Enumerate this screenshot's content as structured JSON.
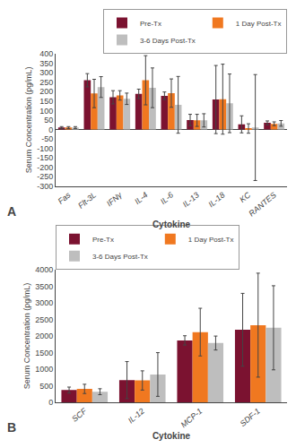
{
  "chart_data": [
    {
      "type": "bar",
      "categories": [
        "Fas",
        "Flt-3L",
        "IFNγ",
        "IL-4",
        "IL-6",
        "IL-13",
        "IL-18",
        "KC",
        "RANTES"
      ],
      "series": [
        {
          "name": "Pre-Tx",
          "color": "#7B1230",
          "values": [
            10,
            260,
            170,
            188,
            178,
            50,
            158,
            27,
            35
          ],
          "errors": [
            5,
            35,
            35,
            25,
            20,
            30,
            180,
            45,
            10
          ]
        },
        {
          "name": "1 Day Post-Tx",
          "color": "#F07820",
          "values": [
            10,
            190,
            180,
            260,
            192,
            48,
            160,
            5,
            30
          ],
          "errors": [
            5,
            75,
            25,
            130,
            75,
            32,
            185,
            25,
            10
          ]
        },
        {
          "name": "3-6 Days Post-Tx",
          "color": "#BEBEBE",
          "values": [
            10,
            224,
            162,
            220,
            130,
            48,
            138,
            10,
            32
          ],
          "errors": [
            5,
            55,
            30,
            105,
            150,
            35,
            155,
            280,
            15
          ]
        }
      ],
      "xlabel": "Cytokine",
      "ylabel": "Serum Concentration (pg/mL)",
      "ylim": [
        -300,
        400
      ],
      "yticks": [
        -300,
        -250,
        -200,
        -150,
        -100,
        -50,
        0,
        50,
        100,
        150,
        200,
        250,
        300,
        350,
        400
      ],
      "legend": "upper right",
      "grid": false,
      "annotations": [
        "A"
      ]
    },
    {
      "type": "bar",
      "categories": [
        "SCF",
        "IL-12",
        "MCP-1",
        "SDF-1"
      ],
      "series": [
        {
          "name": "Pre-Tx",
          "color": "#7B1230",
          "values": [
            370,
            670,
            1870,
            2190
          ],
          "errors": [
            90,
            560,
            140,
            1100
          ]
        },
        {
          "name": "1 Day Post-Tx",
          "color": "#F07820",
          "values": [
            405,
            660,
            2120,
            2330
          ],
          "errors": [
            140,
            290,
            720,
            1570
          ]
        },
        {
          "name": "3-6 Days Post-Tx",
          "color": "#BEBEBE",
          "values": [
            320,
            840,
            1790,
            2250
          ],
          "errors": [
            90,
            660,
            210,
            1270
          ]
        }
      ],
      "xlabel": "Cytokine",
      "ylabel": "Serum Concentration (pg/mL)",
      "ylim": [
        0,
        4000
      ],
      "yticks": [
        0,
        500,
        1000,
        1500,
        2000,
        2500,
        3000,
        3500,
        4000
      ],
      "legend": "upper left",
      "grid": false,
      "annotations": [
        "B"
      ]
    }
  ]
}
